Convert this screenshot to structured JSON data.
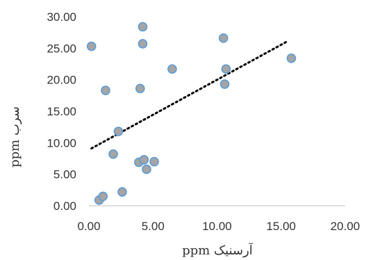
{
  "chart_data": {
    "type": "scatter",
    "title": "",
    "xlabel": "آرسنیک ppm",
    "ylabel": "سرب ppm",
    "xlim": [
      0,
      20
    ],
    "ylim": [
      0,
      30
    ],
    "x_ticks": [
      "0.00",
      "5.00",
      "10.00",
      "15.00",
      "20.00"
    ],
    "y_ticks": [
      "0.00",
      "5.00",
      "10.00",
      "15.00",
      "20.00",
      "25.00",
      "30.00"
    ],
    "grid": false,
    "legend": "none",
    "series": [
      {
        "marker_fill": "#a5a5a5",
        "marker_edge": "#5b9bd5",
        "points": [
          {
            "x": 0.2,
            "y": 25.3
          },
          {
            "x": 0.8,
            "y": 0.9
          },
          {
            "x": 1.1,
            "y": 1.5
          },
          {
            "x": 1.3,
            "y": 18.3
          },
          {
            "x": 1.9,
            "y": 8.2
          },
          {
            "x": 2.3,
            "y": 11.8
          },
          {
            "x": 2.6,
            "y": 2.2
          },
          {
            "x": 3.9,
            "y": 6.9
          },
          {
            "x": 4.0,
            "y": 18.6
          },
          {
            "x": 4.2,
            "y": 28.4
          },
          {
            "x": 4.2,
            "y": 25.7
          },
          {
            "x": 4.3,
            "y": 7.3
          },
          {
            "x": 4.5,
            "y": 5.8
          },
          {
            "x": 5.1,
            "y": 7.0
          },
          {
            "x": 6.5,
            "y": 21.7
          },
          {
            "x": 10.5,
            "y": 26.6
          },
          {
            "x": 10.6,
            "y": 19.3
          },
          {
            "x": 10.7,
            "y": 21.7
          },
          {
            "x": 15.8,
            "y": 23.4
          }
        ]
      }
    ],
    "trendline": {
      "style": "dotted",
      "color": "#000000",
      "x_start": 0.2,
      "y_start": 9.1,
      "x_end": 15.5,
      "y_end": 26.1
    }
  }
}
